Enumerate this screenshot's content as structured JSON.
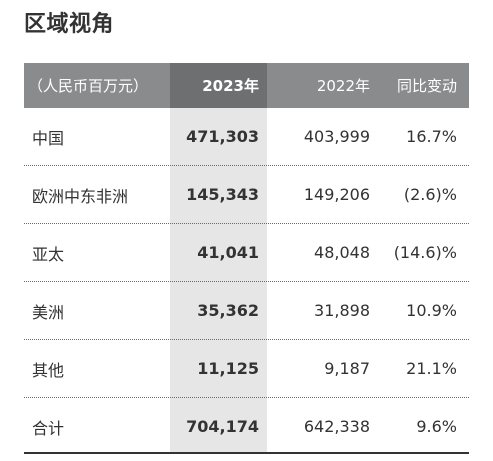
{
  "title": "区域视角",
  "table": {
    "headers": [
      "（人民币百万元）",
      "2023年",
      "2022年",
      "同比变动"
    ],
    "rows": [
      {
        "region": "中国",
        "y2023": "471,303",
        "y2022": "403,999",
        "yoy": "16.7%"
      },
      {
        "region": "欧洲中东非洲",
        "y2023": "145,343",
        "y2022": "149,206",
        "yoy": "(2.6)%"
      },
      {
        "region": "亚太",
        "y2023": "41,041",
        "y2022": "48,048",
        "yoy": "(14.6)%"
      },
      {
        "region": "美洲",
        "y2023": "35,362",
        "y2022": "31,898",
        "yoy": "10.9%"
      },
      {
        "region": "其他",
        "y2023": "11,125",
        "y2022": "9,187",
        "yoy": "21.1%"
      },
      {
        "region": "合计",
        "y2023": "704,174",
        "y2022": "642,338",
        "yoy": "9.6%"
      }
    ]
  },
  "colors": {
    "header_bg": "#8a8b8c",
    "header_highlight_bg": "#6e6f70",
    "column_highlight_bg": "#e6e6e7",
    "text": "#333333"
  }
}
